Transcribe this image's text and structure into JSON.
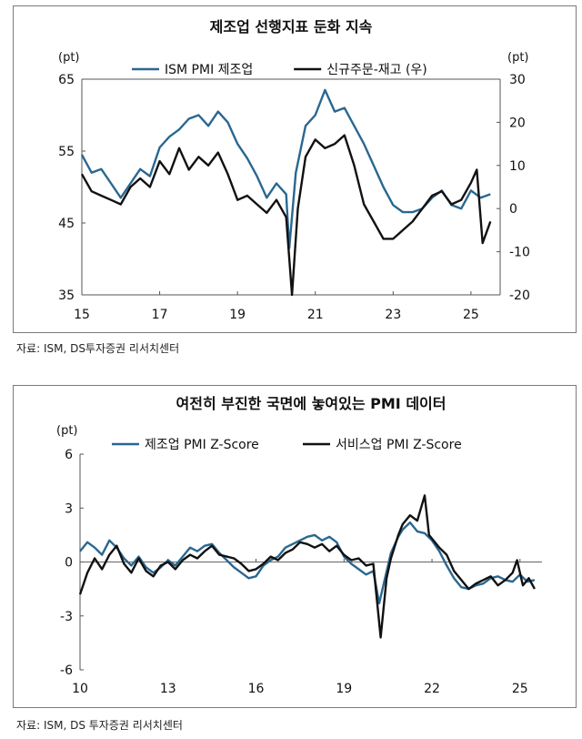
{
  "chart_data": [
    {
      "type": "line",
      "title": "제조업 선행지표 둔화 지속",
      "left_unit": "(pt)",
      "right_unit": "(pt)",
      "x_ticks": [
        "15",
        "17",
        "19",
        "21",
        "23",
        "25"
      ],
      "xlim": [
        2015,
        2025.75
      ],
      "y_left": {
        "ylim": [
          35,
          65
        ],
        "ticks": [
          "65",
          "55",
          "45",
          "35"
        ]
      },
      "y_right": {
        "ylim": [
          -20,
          30
        ],
        "ticks": [
          "30",
          "20",
          "10",
          "0",
          "-10",
          "-20"
        ]
      },
      "series": [
        {
          "name": "ISM PMI 제조업",
          "axis": "left",
          "color": "#2a6790",
          "points": [
            [
              2015.0,
              54.5
            ],
            [
              2015.25,
              52.0
            ],
            [
              2015.5,
              52.5
            ],
            [
              2015.75,
              50.5
            ],
            [
              2016.0,
              48.5
            ],
            [
              2016.25,
              50.5
            ],
            [
              2016.5,
              52.5
            ],
            [
              2016.75,
              51.5
            ],
            [
              2017.0,
              55.5
            ],
            [
              2017.25,
              57.0
            ],
            [
              2017.5,
              58.0
            ],
            [
              2017.75,
              59.5
            ],
            [
              2018.0,
              60.0
            ],
            [
              2018.25,
              58.5
            ],
            [
              2018.5,
              60.5
            ],
            [
              2018.75,
              59.0
            ],
            [
              2019.0,
              56.0
            ],
            [
              2019.25,
              54.0
            ],
            [
              2019.5,
              51.5
            ],
            [
              2019.75,
              48.5
            ],
            [
              2020.0,
              50.5
            ],
            [
              2020.25,
              49.0
            ],
            [
              2020.33,
              41.5
            ],
            [
              2020.5,
              52.0
            ],
            [
              2020.75,
              58.5
            ],
            [
              2021.0,
              60.0
            ],
            [
              2021.25,
              63.5
            ],
            [
              2021.5,
              60.5
            ],
            [
              2021.75,
              61.0
            ],
            [
              2022.0,
              58.5
            ],
            [
              2022.25,
              56.0
            ],
            [
              2022.5,
              53.0
            ],
            [
              2022.75,
              50.0
            ],
            [
              2023.0,
              47.5
            ],
            [
              2023.25,
              46.5
            ],
            [
              2023.5,
              46.5
            ],
            [
              2023.75,
              47.0
            ],
            [
              2024.0,
              48.5
            ],
            [
              2024.25,
              49.5
            ],
            [
              2024.5,
              47.5
            ],
            [
              2024.75,
              47.0
            ],
            [
              2025.0,
              49.5
            ],
            [
              2025.25,
              48.5
            ],
            [
              2025.5,
              49.0
            ]
          ]
        },
        {
          "name": "신규주문-재고 (우)",
          "axis": "right",
          "color": "#111111",
          "points": [
            [
              2015.0,
              8.0
            ],
            [
              2015.25,
              4.0
            ],
            [
              2015.5,
              3.0
            ],
            [
              2015.75,
              2.0
            ],
            [
              2016.0,
              1.0
            ],
            [
              2016.25,
              5.0
            ],
            [
              2016.5,
              7.0
            ],
            [
              2016.75,
              5.0
            ],
            [
              2017.0,
              11.0
            ],
            [
              2017.25,
              8.0
            ],
            [
              2017.5,
              14.0
            ],
            [
              2017.75,
              9.0
            ],
            [
              2018.0,
              12.0
            ],
            [
              2018.25,
              10.0
            ],
            [
              2018.5,
              13.0
            ],
            [
              2018.75,
              8.0
            ],
            [
              2019.0,
              2.0
            ],
            [
              2019.25,
              3.0
            ],
            [
              2019.5,
              1.0
            ],
            [
              2019.75,
              -1.0
            ],
            [
              2020.0,
              2.0
            ],
            [
              2020.25,
              -2.0
            ],
            [
              2020.4,
              -20.0
            ],
            [
              2020.55,
              0.0
            ],
            [
              2020.75,
              12.0
            ],
            [
              2021.0,
              16.0
            ],
            [
              2021.25,
              14.0
            ],
            [
              2021.5,
              15.0
            ],
            [
              2021.75,
              17.0
            ],
            [
              2022.0,
              10.0
            ],
            [
              2022.25,
              1.0
            ],
            [
              2022.5,
              -3.0
            ],
            [
              2022.75,
              -7.0
            ],
            [
              2023.0,
              -7.0
            ],
            [
              2023.25,
              -5.0
            ],
            [
              2023.5,
              -3.0
            ],
            [
              2023.75,
              0.0
            ],
            [
              2024.0,
              3.0
            ],
            [
              2024.25,
              4.0
            ],
            [
              2024.5,
              1.0
            ],
            [
              2024.75,
              2.0
            ],
            [
              2025.0,
              6.0
            ],
            [
              2025.15,
              9.0
            ],
            [
              2025.3,
              -8.0
            ],
            [
              2025.5,
              -3.0
            ]
          ]
        }
      ]
    },
    {
      "type": "line",
      "title": "여전히 부진한 국면에 놓여있는 PMI 데이터",
      "left_unit": "(pt)",
      "x_ticks": [
        "10",
        "13",
        "16",
        "19",
        "22",
        "25"
      ],
      "xlim": [
        2010,
        2025.75
      ],
      "y_left": {
        "ylim": [
          -6,
          6
        ],
        "ticks": [
          "6",
          "3",
          "0",
          "-3",
          "-6"
        ]
      },
      "series": [
        {
          "name": "제조업 PMI Z-Score",
          "axis": "left",
          "color": "#2a6790",
          "points": [
            [
              2010.0,
              0.6
            ],
            [
              2010.25,
              1.1
            ],
            [
              2010.5,
              0.8
            ],
            [
              2010.75,
              0.4
            ],
            [
              2011.0,
              1.2
            ],
            [
              2011.25,
              0.8
            ],
            [
              2011.5,
              0.2
            ],
            [
              2011.75,
              -0.2
            ],
            [
              2012.0,
              0.3
            ],
            [
              2012.25,
              -0.3
            ],
            [
              2012.5,
              -0.6
            ],
            [
              2012.75,
              -0.3
            ],
            [
              2013.0,
              0.1
            ],
            [
              2013.25,
              -0.2
            ],
            [
              2013.5,
              0.3
            ],
            [
              2013.75,
              0.8
            ],
            [
              2014.0,
              0.6
            ],
            [
              2014.25,
              0.9
            ],
            [
              2014.5,
              1.0
            ],
            [
              2014.75,
              0.5
            ],
            [
              2015.0,
              0.1
            ],
            [
              2015.25,
              -0.3
            ],
            [
              2015.5,
              -0.6
            ],
            [
              2015.75,
              -0.9
            ],
            [
              2016.0,
              -0.8
            ],
            [
              2016.25,
              -0.2
            ],
            [
              2016.5,
              0.1
            ],
            [
              2016.75,
              0.3
            ],
            [
              2017.0,
              0.8
            ],
            [
              2017.25,
              1.0
            ],
            [
              2017.5,
              1.2
            ],
            [
              2017.75,
              1.4
            ],
            [
              2018.0,
              1.5
            ],
            [
              2018.25,
              1.2
            ],
            [
              2018.5,
              1.4
            ],
            [
              2018.75,
              1.1
            ],
            [
              2019.0,
              0.3
            ],
            [
              2019.25,
              -0.1
            ],
            [
              2019.5,
              -0.4
            ],
            [
              2019.75,
              -0.7
            ],
            [
              2020.0,
              -0.5
            ],
            [
              2020.2,
              -2.3
            ],
            [
              2020.4,
              -0.9
            ],
            [
              2020.6,
              0.5
            ],
            [
              2020.85,
              1.4
            ],
            [
              2021.0,
              1.8
            ],
            [
              2021.25,
              2.2
            ],
            [
              2021.5,
              1.7
            ],
            [
              2021.75,
              1.6
            ],
            [
              2022.0,
              1.2
            ],
            [
              2022.25,
              0.6
            ],
            [
              2022.5,
              -0.2
            ],
            [
              2022.75,
              -0.9
            ],
            [
              2023.0,
              -1.4
            ],
            [
              2023.25,
              -1.5
            ],
            [
              2023.5,
              -1.3
            ],
            [
              2023.75,
              -1.2
            ],
            [
              2024.0,
              -0.9
            ],
            [
              2024.25,
              -0.8
            ],
            [
              2024.5,
              -1.0
            ],
            [
              2024.75,
              -1.1
            ],
            [
              2025.0,
              -0.7
            ],
            [
              2025.25,
              -1.1
            ],
            [
              2025.5,
              -1.0
            ]
          ]
        },
        {
          "name": "서비스업 PMI Z-Score",
          "axis": "left",
          "color": "#111111",
          "points": [
            [
              2010.0,
              -1.8
            ],
            [
              2010.25,
              -0.6
            ],
            [
              2010.5,
              0.2
            ],
            [
              2010.75,
              -0.4
            ],
            [
              2011.0,
              0.4
            ],
            [
              2011.25,
              0.9
            ],
            [
              2011.5,
              -0.1
            ],
            [
              2011.75,
              -0.6
            ],
            [
              2012.0,
              0.2
            ],
            [
              2012.25,
              -0.5
            ],
            [
              2012.5,
              -0.8
            ],
            [
              2012.75,
              -0.2
            ],
            [
              2013.0,
              0.0
            ],
            [
              2013.25,
              -0.4
            ],
            [
              2013.5,
              0.1
            ],
            [
              2013.75,
              0.4
            ],
            [
              2014.0,
              0.2
            ],
            [
              2014.25,
              0.6
            ],
            [
              2014.5,
              0.9
            ],
            [
              2014.75,
              0.4
            ],
            [
              2015.0,
              0.3
            ],
            [
              2015.25,
              0.2
            ],
            [
              2015.5,
              -0.1
            ],
            [
              2015.75,
              -0.5
            ],
            [
              2016.0,
              -0.4
            ],
            [
              2016.25,
              -0.1
            ],
            [
              2016.5,
              0.3
            ],
            [
              2016.75,
              0.1
            ],
            [
              2017.0,
              0.5
            ],
            [
              2017.25,
              0.7
            ],
            [
              2017.5,
              1.1
            ],
            [
              2017.75,
              1.0
            ],
            [
              2018.0,
              0.8
            ],
            [
              2018.25,
              1.0
            ],
            [
              2018.5,
              0.6
            ],
            [
              2018.75,
              0.9
            ],
            [
              2019.0,
              0.4
            ],
            [
              2019.25,
              0.1
            ],
            [
              2019.5,
              0.2
            ],
            [
              2019.75,
              -0.2
            ],
            [
              2020.0,
              -0.1
            ],
            [
              2020.25,
              -4.2
            ],
            [
              2020.45,
              -0.9
            ],
            [
              2020.6,
              0.2
            ],
            [
              2020.85,
              1.5
            ],
            [
              2021.0,
              2.1
            ],
            [
              2021.25,
              2.6
            ],
            [
              2021.5,
              2.3
            ],
            [
              2021.75,
              3.7
            ],
            [
              2021.9,
              1.5
            ],
            [
              2022.25,
              0.8
            ],
            [
              2022.5,
              0.4
            ],
            [
              2022.75,
              -0.5
            ],
            [
              2023.0,
              -1.0
            ],
            [
              2023.25,
              -1.5
            ],
            [
              2023.5,
              -1.2
            ],
            [
              2023.75,
              -1.0
            ],
            [
              2024.0,
              -0.8
            ],
            [
              2024.25,
              -1.3
            ],
            [
              2024.5,
              -1.0
            ],
            [
              2024.75,
              -0.6
            ],
            [
              2024.9,
              0.1
            ],
            [
              2025.1,
              -1.3
            ],
            [
              2025.3,
              -0.9
            ],
            [
              2025.5,
              -1.5
            ]
          ]
        }
      ]
    }
  ],
  "sources": [
    "자료: ISM, DS투자증권 리서치센터",
    "자료: ISM, DS 투자증권 리서치센터"
  ]
}
